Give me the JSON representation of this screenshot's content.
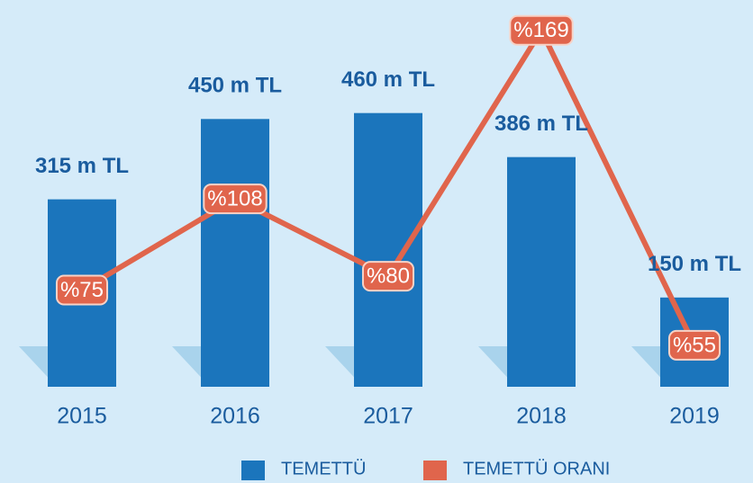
{
  "chart_data": {
    "type": "combo",
    "categories": [
      "2015",
      "2016",
      "2017",
      "2018",
      "2019"
    ],
    "series": [
      {
        "name": "TEMETTÜ",
        "type": "bar",
        "color": "#1b75bc",
        "values": [
          315,
          450,
          460,
          386,
          150
        ],
        "value_labels": [
          "315 m TL",
          "450 m TL",
          "460 m TL",
          "386 m TL",
          "150 m TL"
        ]
      },
      {
        "name": "TEMETTÜ ORANI",
        "type": "line",
        "axis": "y2",
        "color": "#e0654c",
        "values": [
          75,
          108,
          80,
          169,
          55
        ],
        "value_labels": [
          "%75",
          "%108",
          "%80",
          "%169",
          "%55"
        ]
      }
    ],
    "ylim": [
      0,
      650
    ],
    "y2lim": [
      40,
      180
    ],
    "grid": false
  }
}
